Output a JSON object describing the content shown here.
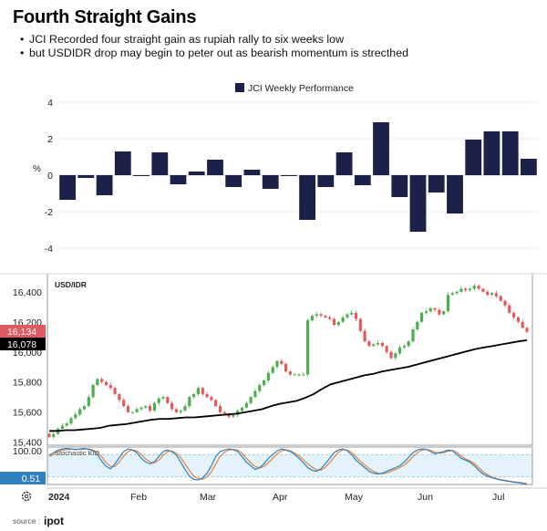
{
  "header": {
    "title": "Fourth Straight Gains",
    "bullets": [
      "JCI Recorded four straight gain as rupiah rally to six weeks low",
      "but USDIDR drop may begin to peter out as bearish momentum is strecthed"
    ]
  },
  "footer": {
    "source_label": "source :",
    "source_name": "ipot"
  },
  "colors": {
    "bar": "#1b2148",
    "candle_up": "#4caf50",
    "candle_down": "#e05a5f",
    "moving_average": "#000000",
    "stoch_k": "#2f7fc1",
    "stoch_d": "#e0853b",
    "stoch_band": "#e3f2fb",
    "badge_last": "#e05a5f",
    "badge_ma": "#000000"
  },
  "chart_data": [
    {
      "type": "bar",
      "legend": "JCI Weekly Performance",
      "ylabel": "%",
      "ylim": [
        -4.5,
        4.2
      ],
      "yticks": [
        4,
        2,
        0,
        -2,
        -4
      ],
      "values": [
        -1.35,
        -0.15,
        -1.1,
        1.3,
        -0.05,
        1.25,
        -0.5,
        0.2,
        0.85,
        -0.65,
        0.3,
        -0.75,
        -0.05,
        -2.45,
        -0.65,
        1.25,
        -0.55,
        2.9,
        -1.2,
        -3.1,
        -0.95,
        -2.1,
        1.95,
        2.4,
        2.4,
        0.9
      ]
    },
    {
      "type": "line",
      "label": "USD/IDR",
      "ylim": [
        15380,
        16520
      ],
      "yticks": [
        16400,
        16200,
        16000,
        15800,
        15600,
        15400
      ],
      "ytick_labels": [
        "16,400",
        "16,200",
        "16,000",
        "15,800",
        "15,600",
        "15,400"
      ],
      "last_price": "16,134",
      "moving_average_last": "16,078",
      "xticks": [
        "2024",
        "Feb",
        "Mar",
        "Apr",
        "May",
        "Jun",
        "Jul"
      ],
      "close_series": [
        15435,
        15455,
        15490,
        15510,
        15525,
        15560,
        15585,
        15620,
        15640,
        15700,
        15780,
        15820,
        15800,
        15780,
        15760,
        15720,
        15680,
        15640,
        15600,
        15600,
        15620,
        15630,
        15640,
        15610,
        15660,
        15690,
        15700,
        15660,
        15620,
        15600,
        15610,
        15640,
        15700,
        15720,
        15760,
        15720,
        15700,
        15680,
        15640,
        15600,
        15590,
        15570,
        15580,
        15610,
        15630,
        15660,
        15700,
        15740,
        15780,
        15810,
        15860,
        15900,
        15940,
        15920,
        15870,
        15850,
        15850,
        15850,
        15850,
        16210,
        16240,
        16250,
        16240,
        16230,
        16220,
        16180,
        16200,
        16230,
        16250,
        16260,
        16220,
        16140,
        16070,
        16040,
        16050,
        16060,
        16040,
        16000,
        15960,
        15990,
        16030,
        16040,
        16070,
        16150,
        16200,
        16260,
        16270,
        16290,
        16280,
        16250,
        16270,
        16380,
        16390,
        16400,
        16420,
        16410,
        16420,
        16440,
        16420,
        16400,
        16380,
        16390,
        16370,
        16340,
        16310,
        16260,
        16230,
        16200,
        16160,
        16134
      ],
      "moving_average": [
        15475,
        15475,
        15480,
        15480,
        15485,
        15490,
        15495,
        15510,
        15515,
        15520,
        15530,
        15540,
        15550,
        15555,
        15555,
        15560,
        15565,
        15565,
        15570,
        15575,
        15580,
        15585,
        15590,
        15600,
        15610,
        15620,
        15640,
        15655,
        15665,
        15675,
        15695,
        15720,
        15755,
        15785,
        15800,
        15815,
        15830,
        15845,
        15855,
        15870,
        15880,
        15890,
        15900,
        15915,
        15930,
        15945,
        15960,
        15975,
        15990,
        16005,
        16020,
        16030,
        16040,
        16050,
        16060,
        16070,
        16078
      ]
    },
    {
      "type": "line",
      "label": "Stochastic K/D",
      "ylim": [
        0,
        100
      ],
      "axis_labels": [
        "100.00"
      ],
      "last_value": "0.51",
      "band": [
        20,
        80
      ],
      "k_series": [
        78,
        85,
        92,
        95,
        96,
        95,
        93,
        95,
        96,
        94,
        90,
        80,
        62,
        48,
        42,
        55,
        72,
        88,
        95,
        92,
        85,
        70,
        60,
        55,
        60,
        75,
        88,
        92,
        88,
        78,
        60,
        40,
        22,
        14,
        12,
        18,
        30,
        50,
        75,
        88,
        92,
        95,
        93,
        88,
        75,
        60,
        50,
        40,
        45,
        55,
        70,
        80,
        90,
        95,
        92,
        88,
        80,
        70,
        58,
        45,
        38,
        35,
        42,
        55,
        70,
        85,
        92,
        95,
        90,
        80,
        65,
        55,
        45,
        35,
        30,
        28,
        30,
        35,
        40,
        45,
        50,
        60,
        72,
        85,
        92,
        95,
        94,
        88,
        82,
        85,
        88,
        92,
        90,
        80,
        70,
        65,
        60,
        50,
        38,
        28,
        22,
        18,
        15,
        12,
        10,
        8,
        6,
        5,
        3,
        0.5
      ],
      "d_series": [
        75,
        80,
        88,
        92,
        94,
        95,
        94,
        94,
        95,
        95,
        92,
        86,
        74,
        58,
        48,
        48,
        60,
        76,
        88,
        92,
        90,
        80,
        68,
        60,
        58,
        65,
        78,
        88,
        89,
        84,
        72,
        55,
        37,
        22,
        16,
        14,
        20,
        34,
        55,
        75,
        86,
        92,
        94,
        92,
        84,
        70,
        58,
        48,
        44,
        48,
        58,
        70,
        82,
        90,
        93,
        90,
        84,
        76,
        66,
        55,
        46,
        39,
        38,
        46,
        58,
        73,
        86,
        93,
        92,
        86,
        74,
        62,
        52,
        42,
        35,
        30,
        29,
        31,
        35,
        40,
        45,
        52,
        62,
        74,
        85,
        92,
        94,
        91,
        86,
        84,
        85,
        89,
        91,
        86,
        76,
        68,
        63,
        56,
        45,
        34,
        26,
        20,
        16,
        13,
        11,
        9,
        7,
        6,
        4,
        2
      ]
    }
  ]
}
